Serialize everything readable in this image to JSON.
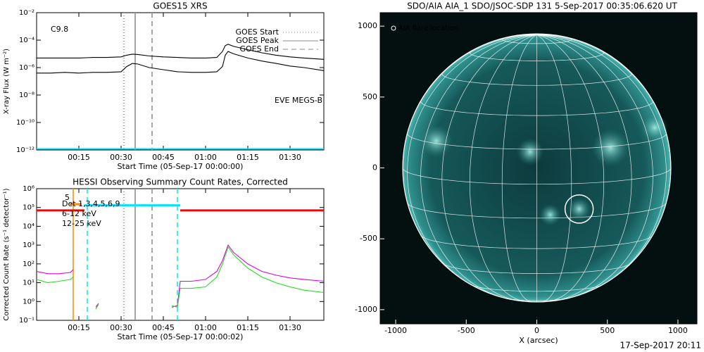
{
  "chart_data": [
    {
      "type": "line",
      "title": "GOES15 XRS",
      "xlabel": "Start Time (05-Sep-17 00:00:00)",
      "ylabel": "X-ray Flux (W m⁻²)",
      "log_y": true,
      "xlim": [
        "00:00",
        "01:42"
      ],
      "ylim": [
        1e-12,
        0.01
      ],
      "xticks": [
        "00:15",
        "00:30",
        "00:45",
        "01:00",
        "01:15",
        "01:30"
      ],
      "yticks": [
        {
          "value": 1e-12,
          "label": "10⁻¹²"
        },
        {
          "value": 1e-10,
          "label": "10⁻¹⁰"
        },
        {
          "value": 1e-08,
          "label": "10⁻⁸"
        },
        {
          "value": 1e-06,
          "label": "10⁻⁶"
        },
        {
          "value": 0.0001,
          "label": "10⁻⁴"
        },
        {
          "value": 0.01,
          "label": "10⁻²"
        }
      ],
      "x": [
        "00:00",
        "00:05",
        "00:10",
        "00:15",
        "00:20",
        "00:25",
        "00:30",
        "00:32",
        "00:34",
        "00:36",
        "00:40",
        "00:45",
        "00:50",
        "00:55",
        "01:00",
        "01:04",
        "01:06",
        "01:07",
        "01:08",
        "01:10",
        "01:15",
        "01:20",
        "01:25",
        "01:30",
        "01:35",
        "01:42"
      ],
      "series": [
        {
          "color": "#000000",
          "values": [
            5e-06,
            5e-06,
            5e-06,
            5e-06,
            5.5e-06,
            5.5e-06,
            6e-06,
            8e-06,
            9.5e-06,
            9e-06,
            7e-06,
            6e-06,
            5.5e-06,
            5e-06,
            5e-06,
            5.5e-06,
            1.5e-05,
            4e-05,
            5e-05,
            3.5e-05,
            2e-05,
            1.2e-05,
            8e-06,
            6e-06,
            5e-06,
            4e-06
          ]
        },
        {
          "color": "#000000",
          "values": [
            4e-07,
            4e-07,
            4.5e-07,
            4e-07,
            4.5e-07,
            4.5e-07,
            5e-07,
            1.2e-06,
            2e-06,
            1.8e-06,
            1e-06,
            7e-07,
            5e-07,
            4.5e-07,
            4.5e-07,
            5e-07,
            1.2e-06,
            8e-06,
            1.5e-05,
            1e-05,
            5e-06,
            3e-06,
            2e-06,
            1.3e-06,
            1e-06,
            6e-07
          ]
        },
        {
          "color": "#00e5ff",
          "values": [
            1.2e-12,
            1.2e-12,
            1.2e-12,
            1.2e-12,
            1.2e-12,
            1.2e-12,
            1.2e-12,
            1.2e-12,
            1.2e-12,
            1.2e-12,
            1.2e-12,
            1.2e-12,
            1.2e-12,
            1.2e-12,
            1.2e-12,
            1.2e-12,
            1.2e-12,
            1.2e-12,
            1.2e-12,
            1.2e-12,
            1.2e-12,
            1.2e-12,
            1.2e-12,
            1.2e-12,
            1.2e-12,
            1.2e-12
          ]
        }
      ],
      "markers": [
        {
          "name": "GOES Start",
          "x": "00:31",
          "style": "dotted",
          "color": "#888888"
        },
        {
          "name": "GOES Peak",
          "x": "00:35",
          "style": "solid",
          "color": "#888888"
        },
        {
          "name": "GOES End",
          "x": "00:41",
          "style": "dashed",
          "color": "#888888"
        }
      ],
      "annotations": [
        {
          "text": "C9.8",
          "color": "#000000"
        },
        {
          "text": "EVE MEGS-B",
          "color": "#00e5ff"
        }
      ]
    },
    {
      "type": "line",
      "title": "HESSI Observing Summary Count Rates, Corrected",
      "xlabel": "Start Time (05-Sep-17 00:00:02)",
      "ylabel": "Corrected Count Rate (s⁻¹ detector⁻¹)",
      "log_y": true,
      "xlim": [
        "00:00",
        "01:42"
      ],
      "ylim": [
        0.1,
        1000000
      ],
      "xticks": [
        "00:15",
        "00:30",
        "00:45",
        "01:00",
        "01:15",
        "01:30"
      ],
      "yticks": [
        {
          "value": 0.1,
          "label": "10⁻¹"
        },
        {
          "value": 1,
          "label": "10⁰"
        },
        {
          "value": 10,
          "label": "10¹"
        },
        {
          "value": 100,
          "label": "10²"
        },
        {
          "value": 1000,
          "label": "10³"
        },
        {
          "value": 10000,
          "label": "10⁴"
        },
        {
          "value": 100000,
          "label": "10⁵"
        },
        {
          "value": 1000000,
          "label": "10⁶"
        }
      ],
      "legend_title": "Det 1,3,4,5,6,9",
      "x": [
        "00:00",
        "00:04",
        "00:08",
        "00:12",
        "00:13",
        "00:14",
        "00:21",
        "00:22",
        "00:23",
        "00:47",
        "00:48",
        "00:50",
        "00:51",
        "00:55",
        "01:00",
        "01:04",
        "01:06",
        "01:08",
        "01:10",
        "01:15",
        "01:20",
        "01:25",
        "01:30",
        "01:35",
        "01:42"
      ],
      "series": [
        {
          "name": "6-12 keV",
          "color": "#e000e0",
          "values": [
            40,
            30,
            30,
            35,
            50,
            null,
            0.5,
            0.8,
            null,
            null,
            0.5,
            0.6,
            12,
            12,
            15,
            40,
            150,
            1000,
            400,
            100,
            40,
            25,
            18,
            15,
            12
          ]
        },
        {
          "name": "12-25 keV",
          "color": "#22dd22",
          "values": [
            15,
            10,
            12,
            15,
            20,
            null,
            0.4,
            0.7,
            null,
            null,
            0.6,
            0.5,
            5,
            5,
            6,
            20,
            100,
            800,
            300,
            60,
            20,
            10,
            6,
            4,
            3
          ]
        }
      ],
      "segments": [
        {
          "x": [
            "00:00",
            "00:17"
          ],
          "y": 70000,
          "color": "#ff0000"
        },
        {
          "x": [
            "00:51",
            "01:42"
          ],
          "y": 70000,
          "color": "#ff0000"
        },
        {
          "x": [
            "00:17",
            "00:51"
          ],
          "y": 130000,
          "color": "#00e5ff"
        },
        {
          "x": [
            "00:12",
            "00:16"
          ],
          "y": 150000,
          "color": "#ff8800"
        }
      ],
      "markers": [
        {
          "x": "00:13",
          "style": "solid",
          "color": "#ff8800"
        },
        {
          "x": "00:18",
          "style": "dashed",
          "color": "#00e5ff"
        },
        {
          "x": "00:31",
          "style": "dotted",
          "color": "#888888"
        },
        {
          "x": "00:35",
          "style": "solid",
          "color": "#888888"
        },
        {
          "x": "00:41",
          "style": "dashed",
          "color": "#888888"
        },
        {
          "x": "00:50",
          "style": "dashed",
          "color": "#00e5ff"
        }
      ],
      "annotations": [
        {
          "text": "5",
          "color": "#ff8800"
        }
      ]
    },
    {
      "type": "image",
      "title": "SDO/AIA AIA_1 SDO/JSOC-SDP 131  5-Sep-2017 00:35:06.620 UT",
      "xlabel": "X (arcsec)",
      "xlim": [
        -1110,
        1135
      ],
      "ylim": [
        -1100,
        1095
      ],
      "xticks": [
        -1000,
        -500,
        0,
        500,
        1000
      ],
      "yticks": [
        -1000,
        -500,
        0,
        500,
        1000
      ],
      "solar_radius": 950,
      "flare": {
        "x": 300,
        "y": -290,
        "r": 100
      },
      "legend": "AIA flare location",
      "footer": "17-Sep-2017 20:11"
    }
  ]
}
